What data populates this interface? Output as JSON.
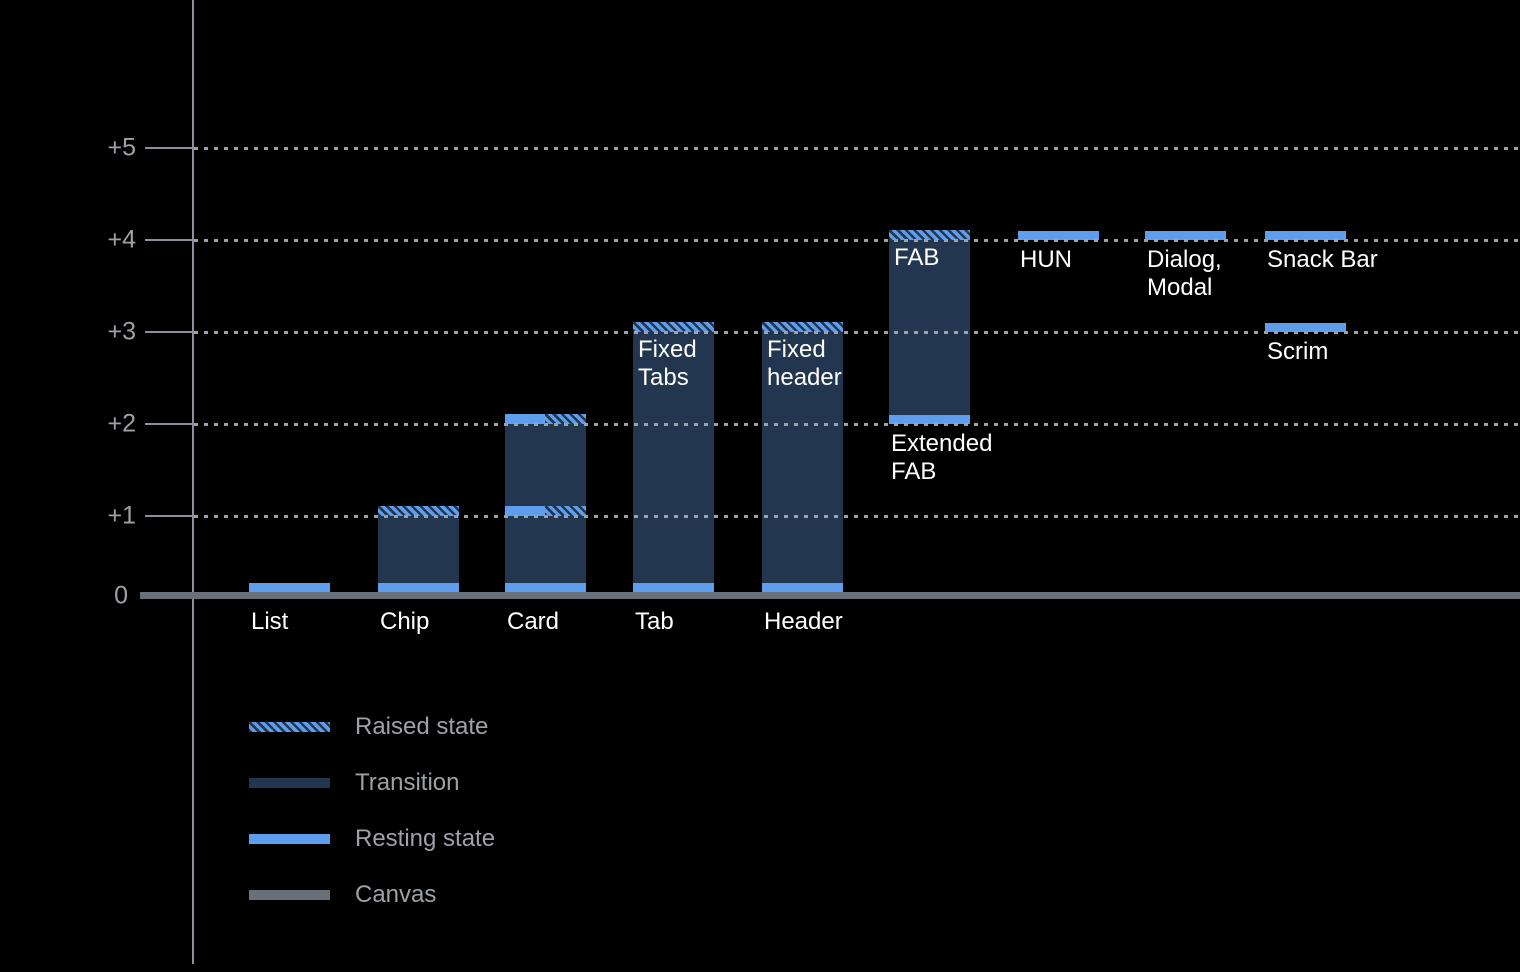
{
  "chart_data": {
    "type": "bar",
    "subtype": "material-elevation-diagram",
    "title": "",
    "xlabel": "",
    "ylabel": "",
    "grid": "dotted-horizontal",
    "y_axis": {
      "range": [
        0,
        5
      ],
      "unit": "elevation level (dp)",
      "ticks": [
        {
          "label": "+5",
          "level": 5
        },
        {
          "label": "+4",
          "level": 4
        },
        {
          "label": "+3",
          "level": 3
        },
        {
          "label": "+2",
          "level": 2
        },
        {
          "label": "+1",
          "level": 1
        },
        {
          "label": "0",
          "level": 0
        }
      ]
    },
    "components": [
      {
        "name": "list",
        "col": 0,
        "segments": [
          {
            "kind": "resting",
            "level": 0
          }
        ],
        "labels": [
          {
            "text": "List",
            "pos": "base"
          }
        ]
      },
      {
        "name": "chip",
        "col": 1,
        "segments": [
          {
            "kind": "transition",
            "from": 0,
            "to": 1
          },
          {
            "kind": "resting",
            "level": 0
          },
          {
            "kind": "raised",
            "level": 1
          }
        ],
        "labels": [
          {
            "text": "Chip",
            "pos": "base"
          }
        ]
      },
      {
        "name": "card",
        "col": 2,
        "segments": [
          {
            "kind": "transition",
            "from": 0,
            "to": 2
          },
          {
            "kind": "resting",
            "level": 0
          },
          {
            "kind": "resting_raised",
            "level": 1
          },
          {
            "kind": "resting_raised",
            "level": 2
          }
        ],
        "labels": [
          {
            "text": "Card",
            "pos": "base"
          }
        ]
      },
      {
        "name": "tab",
        "col": 3,
        "segments": [
          {
            "kind": "transition",
            "from": 0,
            "to": 3
          },
          {
            "kind": "resting",
            "level": 0
          },
          {
            "kind": "raised",
            "level": 3
          }
        ],
        "labels": [
          {
            "text": "Tab",
            "pos": "base"
          },
          {
            "text": "Fixed\nTabs",
            "pos": "inside"
          }
        ]
      },
      {
        "name": "header",
        "col": 4,
        "segments": [
          {
            "kind": "transition",
            "from": 0,
            "to": 3
          },
          {
            "kind": "resting",
            "level": 0
          },
          {
            "kind": "raised",
            "level": 3
          }
        ],
        "labels": [
          {
            "text": "Header",
            "pos": "base"
          },
          {
            "text": "Fixed\nheader",
            "pos": "inside"
          }
        ]
      },
      {
        "name": "fab",
        "col": 5,
        "segments": [
          {
            "kind": "transition",
            "from": 2,
            "to": 4
          },
          {
            "kind": "resting",
            "level": 2
          },
          {
            "kind": "raised",
            "level": 4
          }
        ],
        "labels": [
          {
            "text": "FAB",
            "pos": "inside"
          },
          {
            "text": "Extended\nFAB",
            "pos": "under",
            "level": 2
          }
        ]
      },
      {
        "name": "hun",
        "col": 6,
        "segments": [
          {
            "kind": "resting",
            "level": 4
          }
        ],
        "labels": [
          {
            "text": "HUN",
            "pos": "under",
            "level": 4
          }
        ]
      },
      {
        "name": "dialog-modal",
        "col": 7,
        "segments": [
          {
            "kind": "resting",
            "level": 4
          }
        ],
        "labels": [
          {
            "text": "Dialog,\nModal",
            "pos": "under",
            "level": 4
          }
        ]
      },
      {
        "name": "snack-bar",
        "col": 8,
        "segments": [
          {
            "kind": "resting",
            "level": 4
          }
        ],
        "labels": [
          {
            "text": "Snack Bar",
            "pos": "under",
            "level": 4
          }
        ]
      },
      {
        "name": "scrim",
        "col": 8,
        "segments": [
          {
            "kind": "resting",
            "level": 3
          }
        ],
        "labels": [
          {
            "text": "Scrim",
            "pos": "under",
            "level": 3
          }
        ]
      }
    ],
    "legend": {
      "position": "bottom-left",
      "items": [
        {
          "label": "Raised state",
          "style": "raised"
        },
        {
          "label": "Transition",
          "style": "transition"
        },
        {
          "label": "Resting state",
          "style": "resting"
        },
        {
          "label": "Canvas",
          "style": "canvas"
        }
      ]
    },
    "colors": {
      "background": "#000000",
      "resting": "#5E9EEC",
      "transition": "#22374F",
      "canvas": "#687079",
      "grid": "#9AA2AA",
      "axis": "#8A919A",
      "label_text": "#FFFFFF",
      "muted_text": "#9DA2A7"
    }
  }
}
